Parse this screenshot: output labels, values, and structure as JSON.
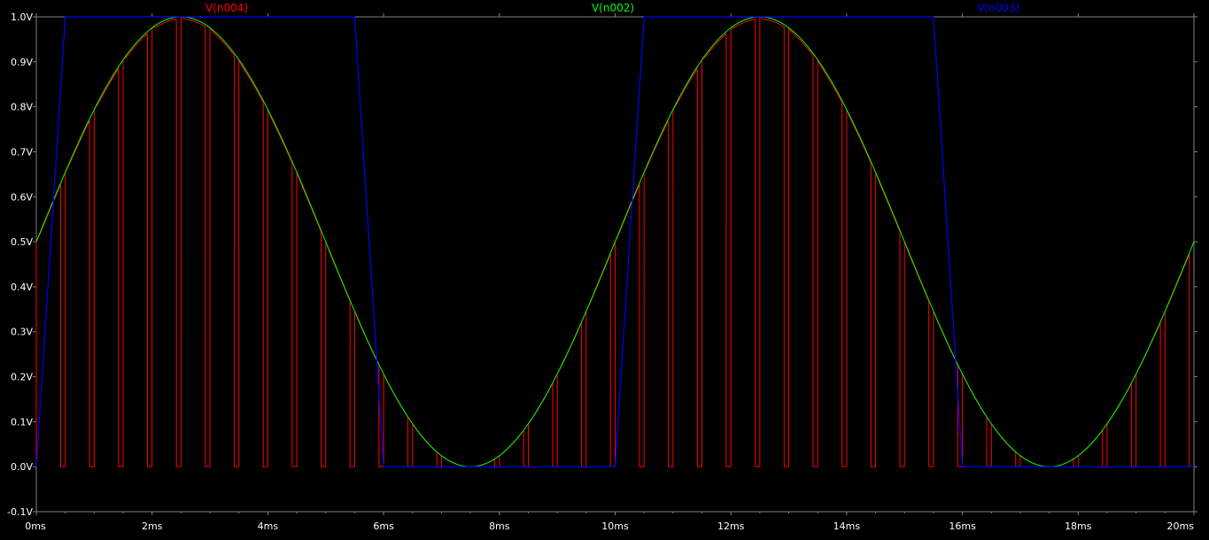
{
  "chart_data": {
    "type": "line",
    "title": "",
    "xlabel": "",
    "ylabel": "",
    "xlim": [
      0,
      20
    ],
    "ylim": [
      -0.1,
      1.0
    ],
    "grid": false,
    "legend_position": "top",
    "background": "#000000",
    "axis_color": "#808080",
    "x_ticks": [
      {
        "value": 0,
        "label": "0ms"
      },
      {
        "value": 2,
        "label": "2ms"
      },
      {
        "value": 4,
        "label": "4ms"
      },
      {
        "value": 6,
        "label": "6ms"
      },
      {
        "value": 8,
        "label": "8ms"
      },
      {
        "value": 10,
        "label": "10ms"
      },
      {
        "value": 12,
        "label": "12ms"
      },
      {
        "value": 14,
        "label": "14ms"
      },
      {
        "value": 16,
        "label": "16ms"
      },
      {
        "value": 18,
        "label": "18ms"
      },
      {
        "value": 20,
        "label": "20ms"
      }
    ],
    "y_ticks": [
      {
        "value": -0.1,
        "label": "-0.1V"
      },
      {
        "value": 0.0,
        "label": "0.0V"
      },
      {
        "value": 0.1,
        "label": "0.1V"
      },
      {
        "value": 0.2,
        "label": "0.2V"
      },
      {
        "value": 0.3,
        "label": "0.3V"
      },
      {
        "value": 0.4,
        "label": "0.4V"
      },
      {
        "value": 0.5,
        "label": "0.5V"
      },
      {
        "value": 0.6,
        "label": "0.6V"
      },
      {
        "value": 0.7,
        "label": "0.7V"
      },
      {
        "value": 0.8,
        "label": "0.8V"
      },
      {
        "value": 0.9,
        "label": "0.9V"
      },
      {
        "value": 1.0,
        "label": "1.0V"
      }
    ],
    "series": [
      {
        "name": "V(n004)",
        "color": "#ff0000",
        "description": "sampled sine: 0.5 ms period pulses sampling V(n002)",
        "x": [
          0,
          0.5,
          1,
          1.5,
          2,
          2.5,
          3,
          3.5,
          4,
          4.5,
          5,
          5.5,
          6,
          6.5,
          7,
          7.5,
          8,
          8.5,
          9,
          9.5,
          10,
          10.5,
          11,
          11.5,
          12,
          12.5,
          13,
          13.5,
          14,
          14.5,
          15,
          15.5,
          16,
          16.5,
          17,
          17.5,
          18,
          18.5,
          19,
          19.5
        ],
        "y": [
          0.5,
          0.65,
          0.79,
          0.9,
          0.98,
          0.99,
          0.98,
          0.9,
          0.79,
          0.65,
          0.5,
          0.35,
          0.21,
          0.1,
          0.03,
          0.0,
          0.03,
          0.1,
          0.21,
          0.35,
          0.5,
          0.65,
          0.79,
          0.9,
          0.98,
          0.99,
          0.98,
          0.9,
          0.79,
          0.65,
          0.5,
          0.35,
          0.21,
          0.1,
          0.03,
          0.0,
          0.03,
          0.1,
          0.21,
          0.35
        ]
      },
      {
        "name": "V(n002)",
        "color": "#00ff00",
        "description": "sine 0.5V offset, 0.5V amplitude, 10 ms period",
        "x": [
          0,
          1,
          2,
          2.5,
          3,
          4,
          5,
          6,
          7,
          7.5,
          8,
          9,
          10,
          11,
          12,
          12.5,
          13,
          14,
          15,
          16,
          17,
          17.5,
          18,
          19,
          20
        ],
        "y": [
          0.5,
          0.79,
          0.98,
          1.0,
          0.98,
          0.79,
          0.5,
          0.21,
          0.02,
          0.0,
          0.02,
          0.21,
          0.5,
          0.79,
          0.98,
          1.0,
          0.98,
          0.79,
          0.5,
          0.21,
          0.02,
          0.0,
          0.02,
          0.21,
          0.5
        ]
      },
      {
        "name": "V(n003)",
        "color": "#0000ff",
        "description": "square wave 0/1 V, 10 ms period",
        "x": [
          0,
          0.5,
          5.5,
          6.0,
          10.0,
          10.5,
          15.5,
          16.0,
          20.0
        ],
        "y": [
          0.0,
          1.0,
          1.0,
          0.0,
          0.0,
          1.0,
          1.0,
          0.0,
          0.0
        ]
      }
    ]
  }
}
